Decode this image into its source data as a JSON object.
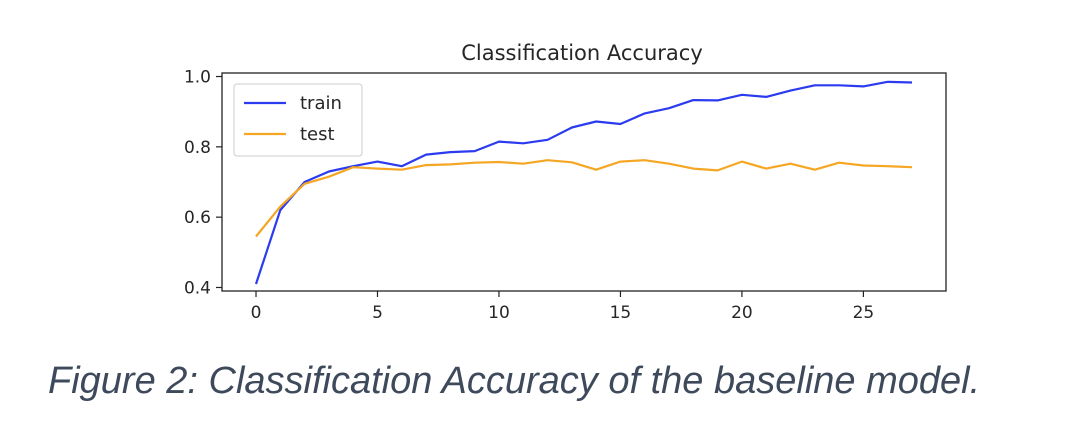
{
  "chart_data": {
    "type": "line",
    "title": "Classification Accuracy",
    "xlabel": "",
    "ylabel": "",
    "xlim": [
      -1.4,
      28.4
    ],
    "ylim": [
      0.39,
      1.01
    ],
    "xticks": [
      0,
      5,
      10,
      15,
      20,
      25
    ],
    "yticks": [
      0.4,
      0.6,
      0.8,
      1.0
    ],
    "ytick_labels": [
      "0.4",
      "0.6",
      "0.8",
      "1.0"
    ],
    "grid": false,
    "legend_position": "top-left",
    "x": [
      0,
      1,
      2,
      3,
      4,
      5,
      6,
      7,
      8,
      9,
      10,
      11,
      12,
      13,
      14,
      15,
      16,
      17,
      18,
      19,
      20,
      21,
      22,
      23,
      24,
      25,
      26,
      27
    ],
    "series": [
      {
        "name": "train",
        "color": "#2b3bf0",
        "values": [
          0.41,
          0.62,
          0.7,
          0.73,
          0.745,
          0.758,
          0.745,
          0.778,
          0.785,
          0.788,
          0.815,
          0.81,
          0.82,
          0.855,
          0.872,
          0.865,
          0.895,
          0.91,
          0.933,
          0.932,
          0.948,
          0.942,
          0.96,
          0.975,
          0.975,
          0.972,
          0.985,
          0.983
        ]
      },
      {
        "name": "test",
        "color": "#f5a623",
        "values": [
          0.545,
          0.63,
          0.695,
          0.715,
          0.742,
          0.738,
          0.735,
          0.748,
          0.75,
          0.755,
          0.757,
          0.752,
          0.762,
          0.756,
          0.735,
          0.758,
          0.762,
          0.752,
          0.738,
          0.733,
          0.758,
          0.738,
          0.752,
          0.735,
          0.755,
          0.747,
          0.745,
          0.742
        ]
      }
    ]
  },
  "caption": "Figure 2: Classification Accuracy of the baseline model."
}
